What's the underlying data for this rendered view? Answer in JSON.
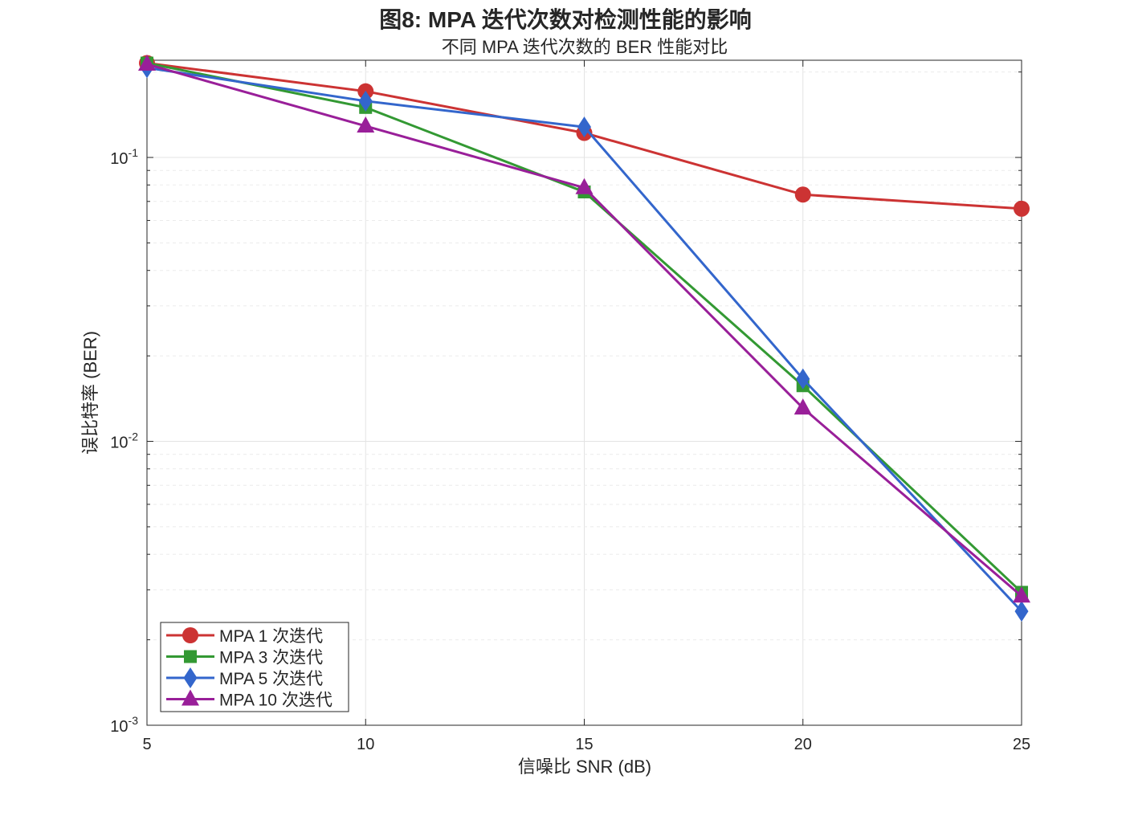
{
  "chart_data": {
    "type": "line",
    "title": "图8: MPA 迭代次数对检测性能的影响",
    "subtitle": "不同 MPA 迭代次数的 BER 性能对比",
    "xlabel": "信噪比 SNR (dB)",
    "ylabel": "误比特率 (BER)",
    "x": [
      5,
      10,
      15,
      20,
      25
    ],
    "xlim": [
      5,
      25
    ],
    "ylim": [
      0.001,
      0.22
    ],
    "yscale": "log",
    "xticks": [
      "5",
      "10",
      "15",
      "20",
      "25"
    ],
    "yticks": [
      {
        "base": "10",
        "exp": "-3",
        "value": 0.001
      },
      {
        "base": "10",
        "exp": "-2",
        "value": 0.01
      },
      {
        "base": "10",
        "exp": "-1",
        "value": 0.1
      }
    ],
    "grid": true,
    "legend_position": "bottom-left",
    "series": [
      {
        "name": "MPA 1 次迭代",
        "color": "#cc3333",
        "marker": "circle",
        "values": [
          0.215,
          0.171,
          0.122,
          0.074,
          0.066
        ]
      },
      {
        "name": "MPA 3 次迭代",
        "color": "#339933",
        "marker": "square",
        "values": [
          0.215,
          0.15,
          0.0756,
          0.0157,
          0.00294
        ]
      },
      {
        "name": "MPA 5 次迭代",
        "color": "#3366cc",
        "marker": "diamond",
        "values": [
          0.207,
          0.158,
          0.128,
          0.0166,
          0.00252
        ]
      },
      {
        "name": "MPA 10 次迭代",
        "color": "#991f99",
        "marker": "triangle",
        "values": [
          0.213,
          0.129,
          0.0782,
          0.0131,
          0.00285
        ]
      }
    ]
  }
}
